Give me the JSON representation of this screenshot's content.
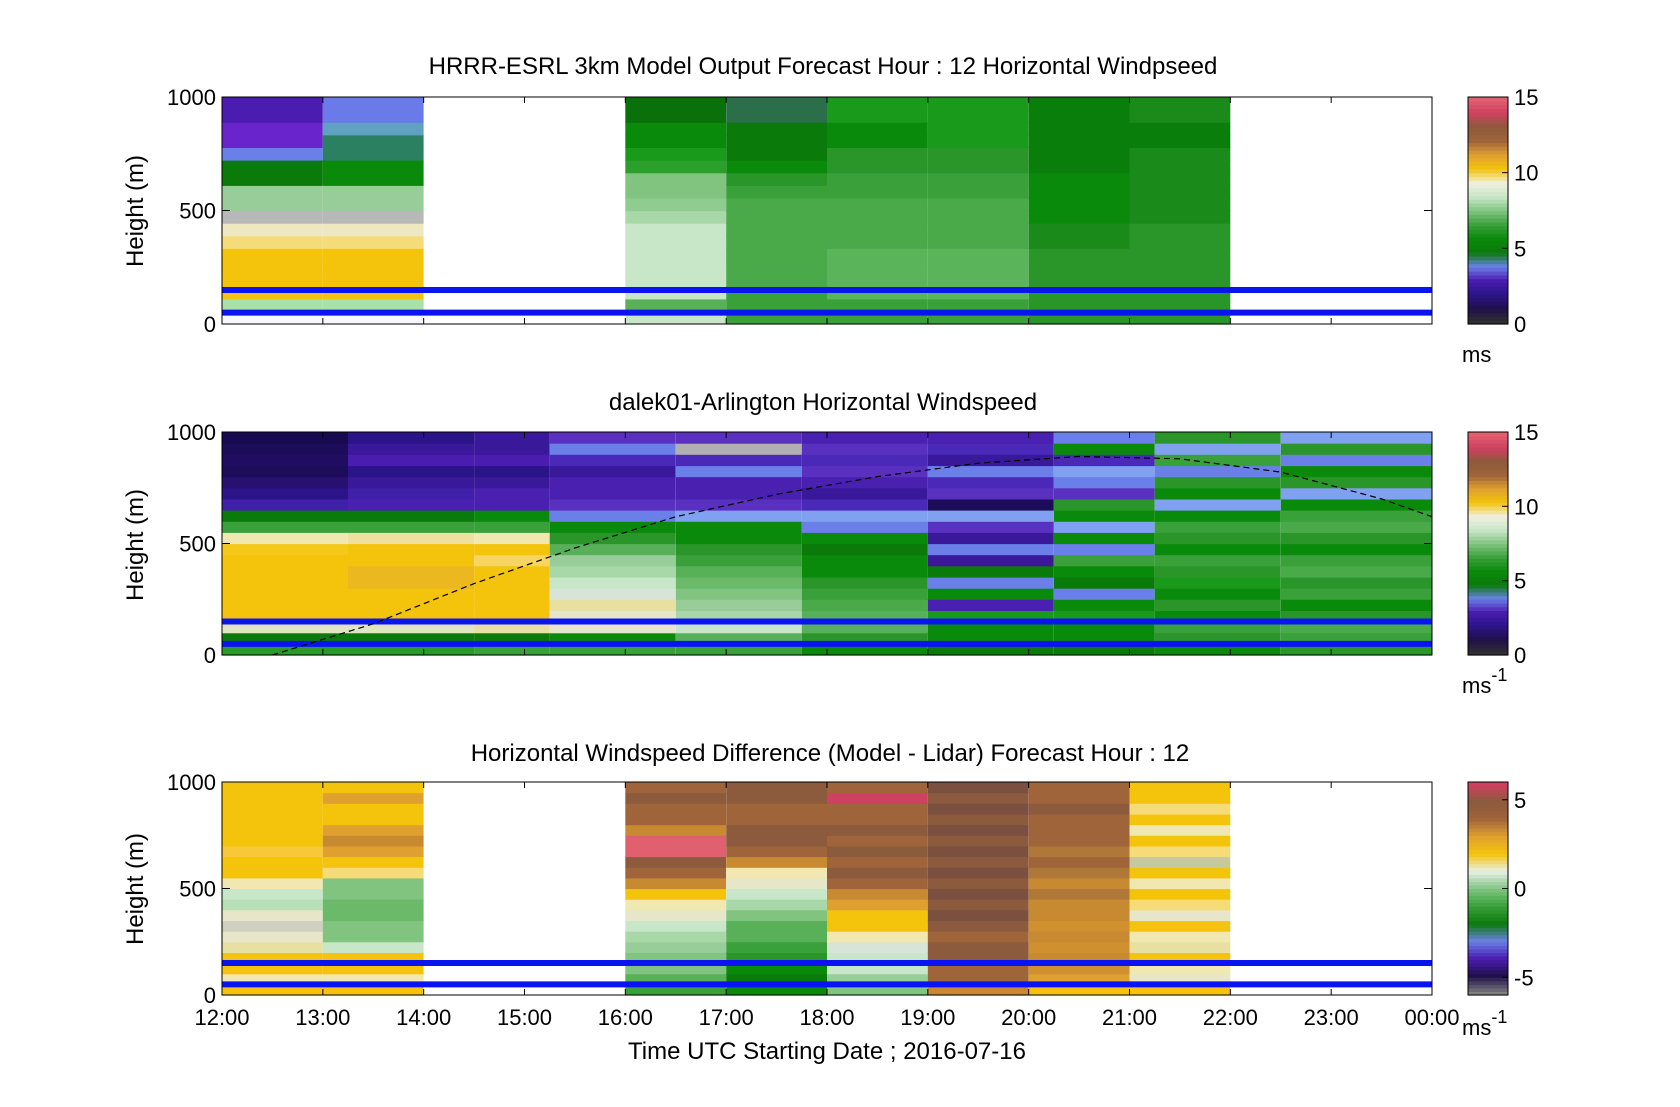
{
  "chart_data": [
    {
      "type": "heatmap",
      "title": "HRRR-ESRL 3km Model Output   Forecast Hour : 12 Horizontal Windpseed",
      "ylabel": "Height (m)",
      "ylim": [
        0,
        1000
      ],
      "yticks": [
        "0",
        "500",
        "1000"
      ],
      "colorbar": {
        "label": "ms",
        "label_sup": "",
        "range": [
          0,
          15
        ],
        "ticks": [
          "0",
          "5",
          "10",
          "15"
        ]
      },
      "columns": [
        {
          "x": [
            12,
            13
          ],
          "colors": [
            "#f8f7fc",
            "#a9e1a9",
            "#f4c30c",
            "#f4c30c",
            "#f4c30c",
            "#f4c30c",
            "#f5dc78",
            "#ede8c0",
            "#b8b8b8",
            "#98cc98",
            "#98cc98",
            "#0a7a0a",
            "#0a7a0a",
            "#6a80e8",
            "#6a24cc",
            "#6a24cc",
            "#4a1cb0",
            "#4a1cb0"
          ]
        },
        {
          "x": [
            13,
            14
          ],
          "colors": [
            "#f8f7fc",
            "#a9e1a9",
            "#f4c30c",
            "#f4c30c",
            "#f4c30c",
            "#f4c30c",
            "#f5dc78",
            "#ede8c0",
            "#b8b8b8",
            "#98cc98",
            "#98cc98",
            "#0a8a0a",
            "#0a8a0a",
            "#2a8060",
            "#2a8060",
            "#60a0c0",
            "#6a7ae8",
            "#6a7ae8"
          ]
        },
        {
          "x": [
            16,
            17
          ],
          "colors": [
            "#c8e6c8",
            "#58b058",
            "#c8e6c8",
            "#c8e6c8",
            "#c8e6c8",
            "#c8e6c8",
            "#c8e6c8",
            "#c8e6c8",
            "#a8d8a8",
            "#90cc90",
            "#80c480",
            "#80c480",
            "#2aa02a",
            "#1a9a1a",
            "#0a8a0a",
            "#0a8a0a",
            "#0a700a",
            "#0a700a"
          ]
        },
        {
          "x": [
            17,
            18
          ],
          "colors": [
            "#3aa03a",
            "#3aa03a",
            "#3aa03a",
            "#4aaa4a",
            "#4aaa4a",
            "#4aaa4a",
            "#4aaa4a",
            "#4aaa4a",
            "#4aaa4a",
            "#4aaa4a",
            "#3aa03a",
            "#2a962a",
            "#0a8a0a",
            "#0a7a0a",
            "#0a7a0a",
            "#0a7a0a",
            "#2a6e4a",
            "#2a6e4a"
          ]
        },
        {
          "x": [
            18,
            19
          ],
          "colors": [
            "#3aa03a",
            "#3aa03a",
            "#5ab45a",
            "#5ab45a",
            "#5ab45a",
            "#5ab45a",
            "#4aaa4a",
            "#4aaa4a",
            "#4aaa4a",
            "#4aaa4a",
            "#3aa03a",
            "#3aa03a",
            "#2a962a",
            "#2a962a",
            "#0a8a0a",
            "#0a8a0a",
            "#1a9a1a",
            "#1a9a1a"
          ]
        },
        {
          "x": [
            19,
            20
          ],
          "colors": [
            "#3aa03a",
            "#3aa03a",
            "#5ab45a",
            "#5ab45a",
            "#5ab45a",
            "#5ab45a",
            "#4aaa4a",
            "#4aaa4a",
            "#4aaa4a",
            "#4aaa4a",
            "#3aa03a",
            "#3aa03a",
            "#2a962a",
            "#2a962a",
            "#1a9a1a",
            "#1a9a1a",
            "#1a9a1a",
            "#1a9a1a"
          ]
        },
        {
          "x": [
            20,
            21
          ],
          "colors": [
            "#2a962a",
            "#2a962a",
            "#2a962a",
            "#2a962a",
            "#2a962a",
            "#2a962a",
            "#1a8a1a",
            "#1a8a1a",
            "#0a8a0a",
            "#0a8a0a",
            "#0a8a0a",
            "#0a8a0a",
            "#0a7e0a",
            "#0a7e0a",
            "#0a7e0a",
            "#0a7e0a",
            "#0a7e0a",
            "#0a7e0a"
          ]
        },
        {
          "x": [
            21,
            22
          ],
          "colors": [
            "#2a962a",
            "#2a962a",
            "#2a962a",
            "#2a962a",
            "#2a962a",
            "#2a962a",
            "#2a962a",
            "#2a962a",
            "#1a8a1a",
            "#1a8a1a",
            "#1a8a1a",
            "#1a8a1a",
            "#1a8a1a",
            "#1a8a1a",
            "#0a7e0a",
            "#0a7e0a",
            "#1a8a1a",
            "#1a8a1a"
          ]
        }
      ]
    },
    {
      "type": "heatmap",
      "title": "dalek01-Arlington  Horizontal Windspeed",
      "ylabel": "Height (m)",
      "ylim": [
        0,
        1000
      ],
      "yticks": [
        "0",
        "500",
        "1000"
      ],
      "colorbar": {
        "label": "ms",
        "label_sup": "-1",
        "range": [
          0,
          15
        ],
        "ticks": [
          "0",
          "5",
          "10",
          "15"
        ]
      },
      "column_step_hours": 0.25,
      "column_count": 47,
      "columns": [
        {
          "x": [
            12,
            13.25
          ],
          "colors": [
            "#2a9a2a",
            "#0a7a0a",
            "#e0e6c0",
            "#f4c30c",
            "#f4c30c",
            "#f4c30c",
            "#f4c30c",
            "#f4c30c",
            "#f4c30c",
            "#f5c81a",
            "#f0e8b0",
            "#3aa03a",
            "#0a7a0a",
            "#4020a8",
            "#2a1488",
            "#281070",
            "#1c0c5a",
            "#200c60",
            "#1c0c5a",
            "#180a50"
          ]
        },
        {
          "x": [
            13.25,
            14.5
          ],
          "colors": [
            "#2a9a2a",
            "#0a7a0a",
            "#e0e6c0",
            "#f4c30c",
            "#f4c30c",
            "#f4c30c",
            "#ecb820",
            "#ecb820",
            "#f4c30c",
            "#f4c30c",
            "#f0e0a0",
            "#3aa03a",
            "#0a7a0a",
            "#4a20b0",
            "#4020a8",
            "#3a189a",
            "#2a1488",
            "#4a1cb0",
            "#3a189a",
            "#2a1488"
          ]
        },
        {
          "x": [
            14.5,
            15.25
          ],
          "colors": [
            "#3aa03a",
            "#0a7a0a",
            "#e8e0a0",
            "#f4c30c",
            "#f4c30c",
            "#f4c30c",
            "#f4c30c",
            "#f4c30c",
            "#f8d460",
            "#f4c30c",
            "#f0e8b0",
            "#3aa03a",
            "#0a8a0a",
            "#4a20b0",
            "#4a20b0",
            "#3a189a",
            "#2a1488",
            "#4a1cb0",
            "#3a189a",
            "#3a189a"
          ]
        },
        {
          "x": [
            15.25,
            16.5
          ],
          "colors": [
            "#3aa03a",
            "#0a8a0a",
            "#e8e6c8",
            "#e8e6c8",
            "#e8e0a0",
            "#d8e4d8",
            "#c8e6c8",
            "#a8d8a8",
            "#98cc98",
            "#58b058",
            "#2a962a",
            "#0a8a0a",
            "#6a80e8",
            "#5a30c0",
            "#4a20b0",
            "#4a20b0",
            "#3a189a",
            "#4a28b8",
            "#6a80e8",
            "#5a30c0"
          ]
        },
        {
          "x": [
            16.5,
            17.75
          ],
          "colors": [
            "#3aa03a",
            "#58b058",
            "#c8e6c8",
            "#a8d8a8",
            "#98cc98",
            "#80c480",
            "#6aba6a",
            "#58b058",
            "#3aa03a",
            "#2a962a",
            "#0a8a0a",
            "#0a8a0a",
            "#80a0f0",
            "#5a30c0",
            "#4a20b0",
            "#4a20b0",
            "#6a80e8",
            "#4a28b8",
            "#b0b0b0",
            "#5a30c0"
          ]
        },
        {
          "x": [
            17.75,
            19
          ],
          "colors": [
            "#0a8a0a",
            "#2a962a",
            "#58b058",
            "#58b058",
            "#4aaa4a",
            "#3aa03a",
            "#2a962a",
            "#0a8a0a",
            "#0a8a0a",
            "#0a7a0a",
            "#0a8a0a",
            "#6a80e8",
            "#80a0f0",
            "#4a28b8",
            "#3a189a",
            "#4a20b0",
            "#5a30c0",
            "#4a28b8",
            "#5a30c0",
            "#4a20b0"
          ]
        },
        {
          "x": [
            19,
            20.25
          ],
          "colors": [
            "#0a7a0a",
            "#0a8a0a",
            "#0a8a0a",
            "#1a9a1a",
            "#4a20b0",
            "#0a8a0a",
            "#6a80e8",
            "#0a7a0a",
            "#3a189a",
            "#6a80e8",
            "#3a189a",
            "#5a30c0",
            "#80a0f0",
            "#1c0c5a",
            "#5a30c0",
            "#4a28b8",
            "#6a80e8",
            "#3a189a",
            "#4a28b8",
            "#4a20b0"
          ]
        },
        {
          "x": [
            20.25,
            21.25
          ],
          "colors": [
            "#0a7a0a",
            "#0a8a0a",
            "#0a8a0a",
            "#1a9a1a",
            "#0a8a0a",
            "#6a80e8",
            "#0a7a0a",
            "#0a8a0a",
            "#3aa03a",
            "#6a80e8",
            "#0a8a0a",
            "#80a0f0",
            "#0a8a0a",
            "#2a962a",
            "#5a30c0",
            "#6a80e8",
            "#80a0f0",
            "#4a28b8",
            "#0a8a0a",
            "#6a80e8"
          ]
        },
        {
          "x": [
            21.25,
            22.5
          ],
          "colors": [
            "#0a8a0a",
            "#2a962a",
            "#3aa03a",
            "#0a8a0a",
            "#2a962a",
            "#0a8a0a",
            "#1a9a1a",
            "#2a962a",
            "#3aa03a",
            "#0a8a0a",
            "#2a962a",
            "#3aa03a",
            "#0a8a0a",
            "#80a0f0",
            "#0a8a0a",
            "#2a962a",
            "#6a80e8",
            "#3aa03a",
            "#80a0f0",
            "#2a962a"
          ]
        },
        {
          "x": [
            22.5,
            24
          ],
          "colors": [
            "#2a962a",
            "#3aa03a",
            "#4aaa4a",
            "#2a962a",
            "#0a8a0a",
            "#3aa03a",
            "#2a962a",
            "#4aaa4a",
            "#3aa03a",
            "#0a8a0a",
            "#2a962a",
            "#4aaa4a",
            "#3aa03a",
            "#0a8a0a",
            "#80a0f0",
            "#2a962a",
            "#0a8a0a",
            "#6a80e8",
            "#2a962a",
            "#80a0f0"
          ]
        }
      ]
    },
    {
      "type": "heatmap",
      "title": "Horizontal Windspeed Difference (Model - Lidar) Forecast Hour : 12",
      "ylabel": "Height (m)",
      "xlabel": "Time UTC  Starting Date ; 2016-07-16",
      "ylim": [
        0,
        1000
      ],
      "yticks": [
        "0",
        "500",
        "1000"
      ],
      "xticks": [
        "12:00",
        "13:00",
        "14:00",
        "15:00",
        "16:00",
        "17:00",
        "18:00",
        "19:00",
        "20:00",
        "21:00",
        "22:00",
        "23:00",
        "00:00"
      ],
      "colorbar": {
        "label": "ms",
        "label_sup": "-1",
        "range": [
          -6,
          6
        ],
        "ticks": [
          "-5",
          "0",
          "5"
        ]
      },
      "columns": [
        {
          "x": [
            12,
            13
          ],
          "colors": [
            "#f4c30c",
            "#f0e8b0",
            "#f4c30c",
            "#f4c30c",
            "#e8e0a0",
            "#e8e6c8",
            "#d0d0c0",
            "#e8e6c8",
            "#b8e0b8",
            "#c8e6c8",
            "#f0e8b0",
            "#f4c30c",
            "#f4c30c",
            "#f8c838",
            "#f4c30c",
            "#f4c30c",
            "#f4c30c",
            "#f4c30c",
            "#f4c30c",
            "#f4c30c"
          ]
        },
        {
          "x": [
            13,
            14
          ],
          "colors": [
            "#f4c30c",
            "#f0e8b0",
            "#f4c30c",
            "#f4c30c",
            "#c8e6c8",
            "#80c480",
            "#80c480",
            "#6aba6a",
            "#6aba6a",
            "#80c480",
            "#80c480",
            "#f5dc78",
            "#f4c30c",
            "#e0a030",
            "#c88a30",
            "#e0a030",
            "#f4c30c",
            "#f4c30c",
            "#e0a030",
            "#f4c30c"
          ]
        },
        {
          "x": [
            16,
            17
          ],
          "colors": [
            "#3aa03a",
            "#58b058",
            "#80c480",
            "#80c480",
            "#98cc98",
            "#a8d8a8",
            "#c8e6c8",
            "#e8e6c8",
            "#f0e8b0",
            "#f4c30c",
            "#c88a30",
            "#a0643a",
            "#8c5a3c",
            "#e06070",
            "#e06070",
            "#c88a30",
            "#a0643a",
            "#a0643a",
            "#8c5a3c",
            "#a0643a"
          ]
        },
        {
          "x": [
            17,
            18
          ],
          "colors": [
            "#0a8a0a",
            "#0a7a0a",
            "#0a8a0a",
            "#2a962a",
            "#3aa03a",
            "#58b058",
            "#58b058",
            "#80c480",
            "#a8d8a8",
            "#c8e6c8",
            "#e8e6c8",
            "#f0e8b0",
            "#c88a30",
            "#a0643a",
            "#8c5a3c",
            "#8c5a3c",
            "#a0643a",
            "#a0643a",
            "#8c5a3c",
            "#8c5a3c"
          ]
        },
        {
          "x": [
            18,
            19
          ],
          "colors": [
            "#80c480",
            "#98cc98",
            "#c8e6c8",
            "#c8e6c8",
            "#d8e4d8",
            "#f0e8b0",
            "#f4c30c",
            "#f4c30c",
            "#e0a030",
            "#c88a30",
            "#a0643a",
            "#8c5a3c",
            "#a0643a",
            "#8c5a3c",
            "#a0643a",
            "#8c5a3c",
            "#a0643a",
            "#a0643a",
            "#d04060",
            "#a0643a"
          ]
        },
        {
          "x": [
            19,
            20
          ],
          "colors": [
            "#c88a30",
            "#a0643a",
            "#a0643a",
            "#8c5a3c",
            "#8c5a3c",
            "#a0643a",
            "#8c5a3c",
            "#7c5040",
            "#8c5a3c",
            "#7c5040",
            "#8c5a3c",
            "#7c5040",
            "#8c5a3c",
            "#7c5040",
            "#8c5a3c",
            "#7c5040",
            "#8c5a3c",
            "#7c5040",
            "#8c5a3c",
            "#7c5040"
          ]
        },
        {
          "x": [
            20,
            21
          ],
          "colors": [
            "#f4c30c",
            "#e0a030",
            "#d09030",
            "#c88a30",
            "#d09030",
            "#c88a30",
            "#d09030",
            "#c88a30",
            "#c88a30",
            "#b07838",
            "#c88a30",
            "#b07838",
            "#a0643a",
            "#b07838",
            "#a0643a",
            "#a0643a",
            "#a0643a",
            "#8c5a3c",
            "#a0643a",
            "#a0643a"
          ]
        },
        {
          "x": [
            21,
            22
          ],
          "colors": [
            "#f4c30c",
            "#e8e6c8",
            "#f0e8b0",
            "#f4c30c",
            "#e8e0a0",
            "#f0e8b0",
            "#f4c30c",
            "#e8e6c8",
            "#f5dc78",
            "#f4c30c",
            "#f0e8b0",
            "#f4c30c",
            "#c8c8a0",
            "#f5dc78",
            "#f4c30c",
            "#f0e8b0",
            "#f4c30c",
            "#f5dc78",
            "#f4c30c",
            "#f4c30c"
          ]
        }
      ]
    }
  ],
  "reference_lines": {
    "heights": [
      50,
      150
    ],
    "color": "#0a14f0"
  },
  "dashed_curve": {
    "color": "#000000",
    "points": [
      [
        12.5,
        0
      ],
      [
        13.5,
        140
      ],
      [
        14.5,
        320
      ],
      [
        15.5,
        480
      ],
      [
        16.5,
        620
      ],
      [
        17.5,
        720
      ],
      [
        18.5,
        800
      ],
      [
        19.5,
        860
      ],
      [
        20.5,
        890
      ],
      [
        21.5,
        880
      ],
      [
        22.5,
        820
      ],
      [
        23.5,
        700
      ],
      [
        24,
        620
      ]
    ]
  },
  "colormaps": {
    "speed": [
      "#303030",
      "#20104a",
      "#2a1488",
      "#4a1cb0",
      "#6a80e8",
      "#0a7a0a",
      "#0a8a0a",
      "#3aa03a",
      "#80c480",
      "#c8e6c8",
      "#f0f0e0",
      "#f4c30c",
      "#e0a030",
      "#a0643a",
      "#8c5a3c",
      "#d04060",
      "#e06070"
    ],
    "diff": [
      "#808080",
      "#20104a",
      "#4a1cb0",
      "#6a80e8",
      "#0a7a0a",
      "#3aa03a",
      "#80c480",
      "#e8f0e8",
      "#f4c30c",
      "#e0a030",
      "#a0643a",
      "#8c5a3c",
      "#d04060"
    ]
  }
}
